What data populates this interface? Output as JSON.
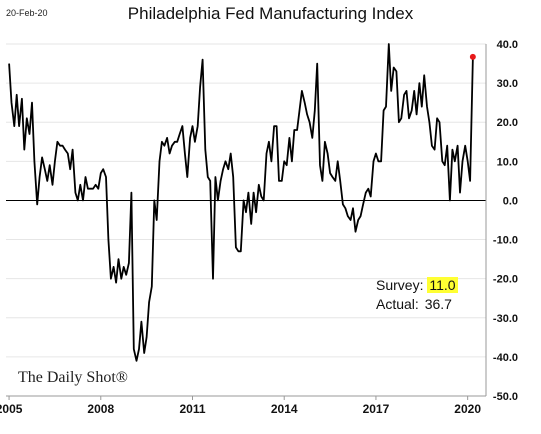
{
  "header": {
    "date": "20-Feb-20",
    "title": "Philadelphia Fed Manufacturing Index"
  },
  "branding": {
    "logo_text": "The Daily Shot®"
  },
  "annotations": {
    "survey_label": "Survey:",
    "survey_value": "11.0",
    "actual_label": "Actual:",
    "actual_value": "36.7",
    "highlight_color": "#ffff33",
    "endpoint_color": "#e8191a"
  },
  "chart_data": {
    "type": "line",
    "title": "Philadelphia Fed Manufacturing Index",
    "xlabel": "",
    "ylabel": "",
    "xlim": [
      2004.9,
      2020.6
    ],
    "ylim": [
      -50,
      40
    ],
    "x_ticks": [
      2005,
      2008,
      2011,
      2014,
      2017,
      2020
    ],
    "x_tick_labels": [
      "2005",
      "2008",
      "2011",
      "2014",
      "2017",
      "2020"
    ],
    "y_ticks": [
      40,
      30,
      20,
      10,
      0,
      -10,
      -20,
      -30,
      -40,
      -50
    ],
    "y_tick_labels": [
      "40.0",
      "30.0",
      "20.0",
      "10.0",
      "0.0",
      "-10.0",
      "-20.0",
      "-30.0",
      "-40.0",
      "-50.0"
    ],
    "grid": "horizontal",
    "zero_line": true,
    "series": [
      {
        "color": "#000000",
        "points": [
          [
            2005.0,
            35
          ],
          [
            2005.08,
            25
          ],
          [
            2005.17,
            19
          ],
          [
            2005.25,
            27
          ],
          [
            2005.33,
            19
          ],
          [
            2005.42,
            26
          ],
          [
            2005.5,
            13
          ],
          [
            2005.58,
            21
          ],
          [
            2005.67,
            17
          ],
          [
            2005.75,
            25
          ],
          [
            2005.83,
            10
          ],
          [
            2005.92,
            -1
          ],
          [
            2006.0,
            6
          ],
          [
            2006.08,
            11
          ],
          [
            2006.17,
            8
          ],
          [
            2006.25,
            5
          ],
          [
            2006.33,
            9
          ],
          [
            2006.42,
            4
          ],
          [
            2006.5,
            10
          ],
          [
            2006.58,
            15
          ],
          [
            2006.67,
            14
          ],
          [
            2006.75,
            14
          ],
          [
            2006.83,
            13
          ],
          [
            2006.92,
            12
          ],
          [
            2007.0,
            8
          ],
          [
            2007.08,
            13
          ],
          [
            2007.17,
            2
          ],
          [
            2007.25,
            0
          ],
          [
            2007.33,
            4
          ],
          [
            2007.42,
            0
          ],
          [
            2007.5,
            6
          ],
          [
            2007.58,
            3
          ],
          [
            2007.67,
            3
          ],
          [
            2007.75,
            3
          ],
          [
            2007.83,
            4
          ],
          [
            2007.92,
            3
          ],
          [
            2008.0,
            7
          ],
          [
            2008.08,
            8
          ],
          [
            2008.17,
            6
          ],
          [
            2008.25,
            -10
          ],
          [
            2008.33,
            -20
          ],
          [
            2008.42,
            -17
          ],
          [
            2008.5,
            -21
          ],
          [
            2008.58,
            -15
          ],
          [
            2008.67,
            -20
          ],
          [
            2008.75,
            -17
          ],
          [
            2008.83,
            -19
          ],
          [
            2008.92,
            -16
          ],
          [
            2009.0,
            2
          ],
          [
            2009.08,
            -38
          ],
          [
            2009.17,
            -41
          ],
          [
            2009.25,
            -38
          ],
          [
            2009.33,
            -31
          ],
          [
            2009.42,
            -39
          ],
          [
            2009.5,
            -35
          ],
          [
            2009.58,
            -26
          ],
          [
            2009.67,
            -22
          ],
          [
            2009.75,
            0
          ],
          [
            2009.83,
            -5
          ],
          [
            2009.92,
            10
          ],
          [
            2010.0,
            15
          ],
          [
            2010.08,
            14
          ],
          [
            2010.17,
            16
          ],
          [
            2010.25,
            12
          ],
          [
            2010.33,
            14
          ],
          [
            2010.42,
            15
          ],
          [
            2010.5,
            15
          ],
          [
            2010.58,
            17
          ],
          [
            2010.67,
            19
          ],
          [
            2010.75,
            12
          ],
          [
            2010.83,
            6
          ],
          [
            2010.92,
            16
          ],
          [
            2011.0,
            19
          ],
          [
            2011.08,
            15
          ],
          [
            2011.17,
            19
          ],
          [
            2011.25,
            29
          ],
          [
            2011.33,
            36
          ],
          [
            2011.42,
            13
          ],
          [
            2011.5,
            6
          ],
          [
            2011.58,
            5
          ],
          [
            2011.67,
            -20
          ],
          [
            2011.75,
            6
          ],
          [
            2011.83,
            0
          ],
          [
            2011.92,
            5
          ],
          [
            2012.0,
            8
          ],
          [
            2012.08,
            10
          ],
          [
            2012.17,
            8
          ],
          [
            2012.25,
            12
          ],
          [
            2012.33,
            6
          ],
          [
            2012.42,
            -12
          ],
          [
            2012.5,
            -13
          ],
          [
            2012.58,
            -13
          ],
          [
            2012.67,
            0
          ],
          [
            2012.75,
            -3
          ],
          [
            2012.83,
            2
          ],
          [
            2012.92,
            -6
          ],
          [
            2013.0,
            2
          ],
          [
            2013.08,
            -3
          ],
          [
            2013.17,
            4
          ],
          [
            2013.25,
            1
          ],
          [
            2013.33,
            0
          ],
          [
            2013.42,
            12
          ],
          [
            2013.5,
            15
          ],
          [
            2013.58,
            10
          ],
          [
            2013.67,
            19
          ],
          [
            2013.75,
            19
          ],
          [
            2013.83,
            5
          ],
          [
            2013.92,
            5
          ],
          [
            2014.0,
            10
          ],
          [
            2014.08,
            9
          ],
          [
            2014.17,
            16
          ],
          [
            2014.25,
            10
          ],
          [
            2014.33,
            18
          ],
          [
            2014.42,
            18
          ],
          [
            2014.5,
            23
          ],
          [
            2014.58,
            28
          ],
          [
            2014.67,
            25
          ],
          [
            2014.75,
            22
          ],
          [
            2014.83,
            20
          ],
          [
            2014.92,
            16
          ],
          [
            2015.0,
            23
          ],
          [
            2015.08,
            35
          ],
          [
            2015.17,
            9
          ],
          [
            2015.25,
            5
          ],
          [
            2015.33,
            15
          ],
          [
            2015.42,
            12
          ],
          [
            2015.5,
            7
          ],
          [
            2015.58,
            6
          ],
          [
            2015.67,
            5
          ],
          [
            2015.75,
            10
          ],
          [
            2015.83,
            5
          ],
          [
            2015.92,
            -1
          ],
          [
            2016.0,
            -2
          ],
          [
            2016.08,
            -4
          ],
          [
            2016.17,
            -5
          ],
          [
            2016.25,
            -2
          ],
          [
            2016.33,
            -8
          ],
          [
            2016.42,
            -5
          ],
          [
            2016.5,
            -4
          ],
          [
            2016.58,
            -1
          ],
          [
            2016.67,
            2
          ],
          [
            2016.75,
            3
          ],
          [
            2016.83,
            1
          ],
          [
            2016.92,
            10
          ],
          [
            2017.0,
            12
          ],
          [
            2017.08,
            10
          ],
          [
            2017.17,
            10
          ],
          [
            2017.25,
            23
          ],
          [
            2017.33,
            24
          ],
          [
            2017.42,
            40
          ],
          [
            2017.5,
            28
          ],
          [
            2017.58,
            34
          ],
          [
            2017.67,
            33
          ],
          [
            2017.75,
            20
          ],
          [
            2017.83,
            21
          ],
          [
            2017.92,
            27
          ],
          [
            2018.0,
            28
          ],
          [
            2018.08,
            21
          ],
          [
            2018.17,
            23
          ],
          [
            2018.25,
            28
          ],
          [
            2018.33,
            22
          ],
          [
            2018.42,
            30
          ],
          [
            2018.5,
            24
          ],
          [
            2018.58,
            32
          ],
          [
            2018.67,
            24
          ],
          [
            2018.75,
            20
          ],
          [
            2018.83,
            14
          ],
          [
            2018.92,
            13
          ],
          [
            2019.0,
            21
          ],
          [
            2019.08,
            20
          ],
          [
            2019.17,
            10
          ],
          [
            2019.25,
            9
          ],
          [
            2019.33,
            14
          ],
          [
            2019.42,
            0
          ],
          [
            2019.5,
            13
          ],
          [
            2019.58,
            10
          ],
          [
            2019.67,
            14
          ],
          [
            2019.75,
            2
          ],
          [
            2019.83,
            10
          ],
          [
            2019.92,
            14
          ],
          [
            2020.0,
            10
          ],
          [
            2020.08,
            5
          ],
          [
            2020.17,
            36.7
          ]
        ]
      }
    ],
    "endpoint": [
      2020.17,
      36.7
    ]
  }
}
